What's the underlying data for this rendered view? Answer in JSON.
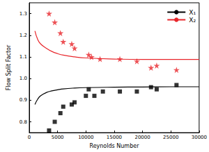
{
  "chart_data": {
    "type": "scatter",
    "x_label": "Reynolds Number",
    "y_label": "Flow Split Factor",
    "xlim": [
      0,
      30000
    ],
    "xticks": [
      0,
      5000,
      10000,
      15000,
      20000,
      25000,
      30000
    ],
    "ylim": [
      0.75,
      1.35
    ],
    "yticks": [
      0.8,
      0.9,
      {
        "value": 1,
        "label": "1.0"
      },
      1.1,
      1.2,
      1.3
    ],
    "grid": false,
    "legend": "upper right",
    "series": [
      {
        "name": "X₁",
        "type": "line",
        "color": "#000000",
        "line_style": "solid",
        "x": [
          1000,
          1500,
          2000,
          3000,
          4000,
          5000,
          6000,
          8000,
          10000,
          15000,
          20000,
          25000,
          30000
        ],
        "values": [
          0.88,
          0.905,
          0.92,
          0.935,
          0.943,
          0.948,
          0.952,
          0.956,
          0.958,
          0.96,
          0.961,
          0.962,
          0.962
        ]
      },
      {
        "name": "X₂",
        "type": "line",
        "color": "#e8262b",
        "line_style": "solid",
        "x": [
          1000,
          1500,
          2000,
          3000,
          4000,
          5000,
          6000,
          8000,
          10000,
          15000,
          20000,
          25000,
          30000
        ],
        "values": [
          1.22,
          1.18,
          1.16,
          1.14,
          1.125,
          1.115,
          1.108,
          1.1,
          1.095,
          1.09,
          1.088,
          1.088,
          1.088
        ]
      },
      {
        "type": "scatter",
        "color": "#e8262b",
        "marker": "star",
        "x": [
          3500,
          4500,
          5500,
          6000,
          7500,
          8000,
          10500,
          11000,
          12500,
          16000,
          19000,
          21500,
          22500,
          26000
        ],
        "values": [
          1.3,
          1.26,
          1.21,
          1.17,
          1.16,
          1.14,
          1.11,
          1.1,
          1.09,
          1.09,
          1.08,
          1.05,
          1.06,
          1.04
        ]
      },
      {
        "type": "scatter",
        "color": "#000000",
        "marker": "square",
        "x": [
          3500,
          4500,
          5500,
          6000,
          7500,
          8000,
          10000,
          10500,
          11500,
          13000,
          16000,
          19000,
          21500,
          22500,
          26000
        ],
        "values": [
          0.76,
          0.8,
          0.84,
          0.87,
          0.88,
          0.89,
          0.92,
          0.95,
          0.92,
          0.94,
          0.94,
          0.94,
          0.96,
          0.95,
          0.97
        ]
      }
    ]
  }
}
